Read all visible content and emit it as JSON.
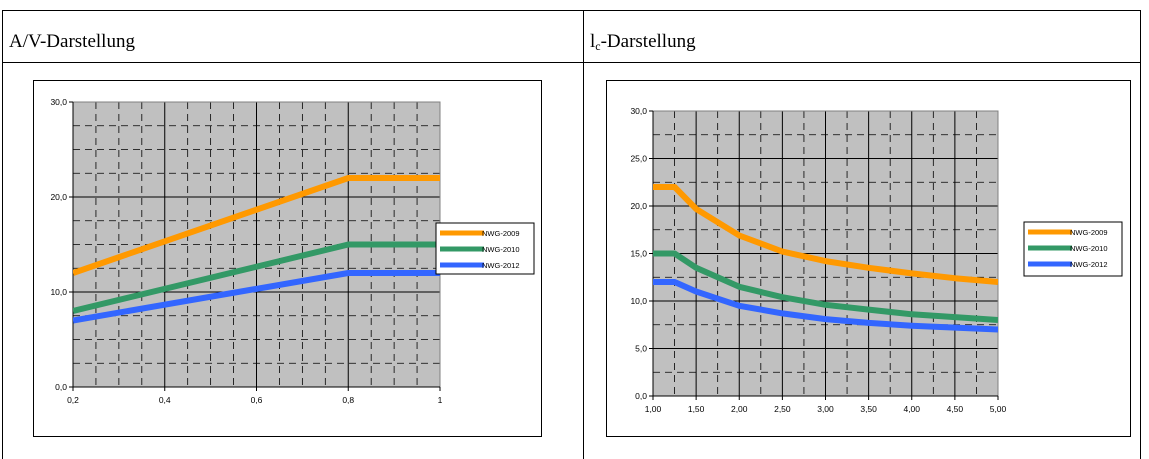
{
  "table": {
    "cells": [
      {
        "title_main": "A/V-Darstellung",
        "title_sub": ""
      },
      {
        "title_main": "l",
        "title_sub": "c",
        "title_rest": "-Darstellung"
      }
    ]
  },
  "colors": {
    "plot_bg": "#c0c0c0",
    "grid": "#000000",
    "nwg2009": "#ff9900",
    "nwg2010": "#339966",
    "nwg2012": "#3366ff"
  },
  "chart_data": [
    {
      "type": "line",
      "title": "",
      "xlabel": "",
      "ylabel": "",
      "xlim": [
        0.2,
        1.0
      ],
      "ylim": [
        0.0,
        30.0
      ],
      "x_ticks": [
        0.2,
        0.4,
        0.6,
        0.8,
        1.0
      ],
      "x_tick_labels": [
        "0,2",
        "0,4",
        "0,6",
        "0,8",
        "1"
      ],
      "y_ticks": [
        0,
        10,
        20,
        30
      ],
      "y_tick_labels": [
        "0,0",
        "10,0",
        "20,0",
        "30,0"
      ],
      "grid": true,
      "legend": "right",
      "series": [
        {
          "name": "NWG-2009",
          "color": "#ff9900",
          "x": [
            0.2,
            0.8,
            1.0
          ],
          "y": [
            12,
            22,
            22
          ]
        },
        {
          "name": "NWG-2010",
          "color": "#339966",
          "x": [
            0.2,
            0.8,
            1.0
          ],
          "y": [
            8,
            15,
            15
          ]
        },
        {
          "name": "NWG-2012",
          "color": "#3366ff",
          "x": [
            0.2,
            0.8,
            1.0
          ],
          "y": [
            7,
            12,
            12
          ]
        }
      ]
    },
    {
      "type": "line",
      "title": "",
      "xlabel": "",
      "ylabel": "",
      "xlim": [
        1.0,
        5.0
      ],
      "ylim": [
        0.0,
        30.0
      ],
      "x_ticks": [
        1.0,
        1.5,
        2.0,
        2.5,
        3.0,
        3.5,
        4.0,
        4.5,
        5.0
      ],
      "x_tick_labels": [
        "1,00",
        "1,50",
        "2,00",
        "2,50",
        "3,00",
        "3,50",
        "4,00",
        "4,50",
        "5,00"
      ],
      "y_ticks": [
        0,
        5,
        10,
        15,
        20,
        25,
        30
      ],
      "y_tick_labels": [
        "0,0",
        "5,0",
        "10,0",
        "15,0",
        "20,0",
        "25,0",
        "30,0"
      ],
      "grid": true,
      "legend": "right",
      "series": [
        {
          "name": "NWG-2009",
          "color": "#ff9900",
          "x": [
            1.0,
            1.25,
            1.5,
            2.0,
            2.5,
            3.0,
            3.5,
            4.0,
            4.5,
            5.0
          ],
          "y": [
            22,
            22,
            19.7,
            16.9,
            15.2,
            14.2,
            13.5,
            12.9,
            12.4,
            12.0
          ]
        },
        {
          "name": "NWG-2010",
          "color": "#339966",
          "x": [
            1.0,
            1.25,
            1.5,
            2.0,
            2.5,
            3.0,
            3.5,
            4.0,
            4.5,
            5.0
          ],
          "y": [
            15,
            15,
            13.5,
            11.5,
            10.4,
            9.6,
            9.1,
            8.6,
            8.3,
            8.0
          ]
        },
        {
          "name": "NWG-2012",
          "color": "#3366ff",
          "x": [
            1.0,
            1.25,
            1.5,
            2.0,
            2.5,
            3.0,
            3.5,
            4.0,
            4.5,
            5.0
          ],
          "y": [
            12,
            12,
            11.0,
            9.5,
            8.7,
            8.1,
            7.7,
            7.4,
            7.2,
            7.0
          ]
        }
      ]
    }
  ]
}
